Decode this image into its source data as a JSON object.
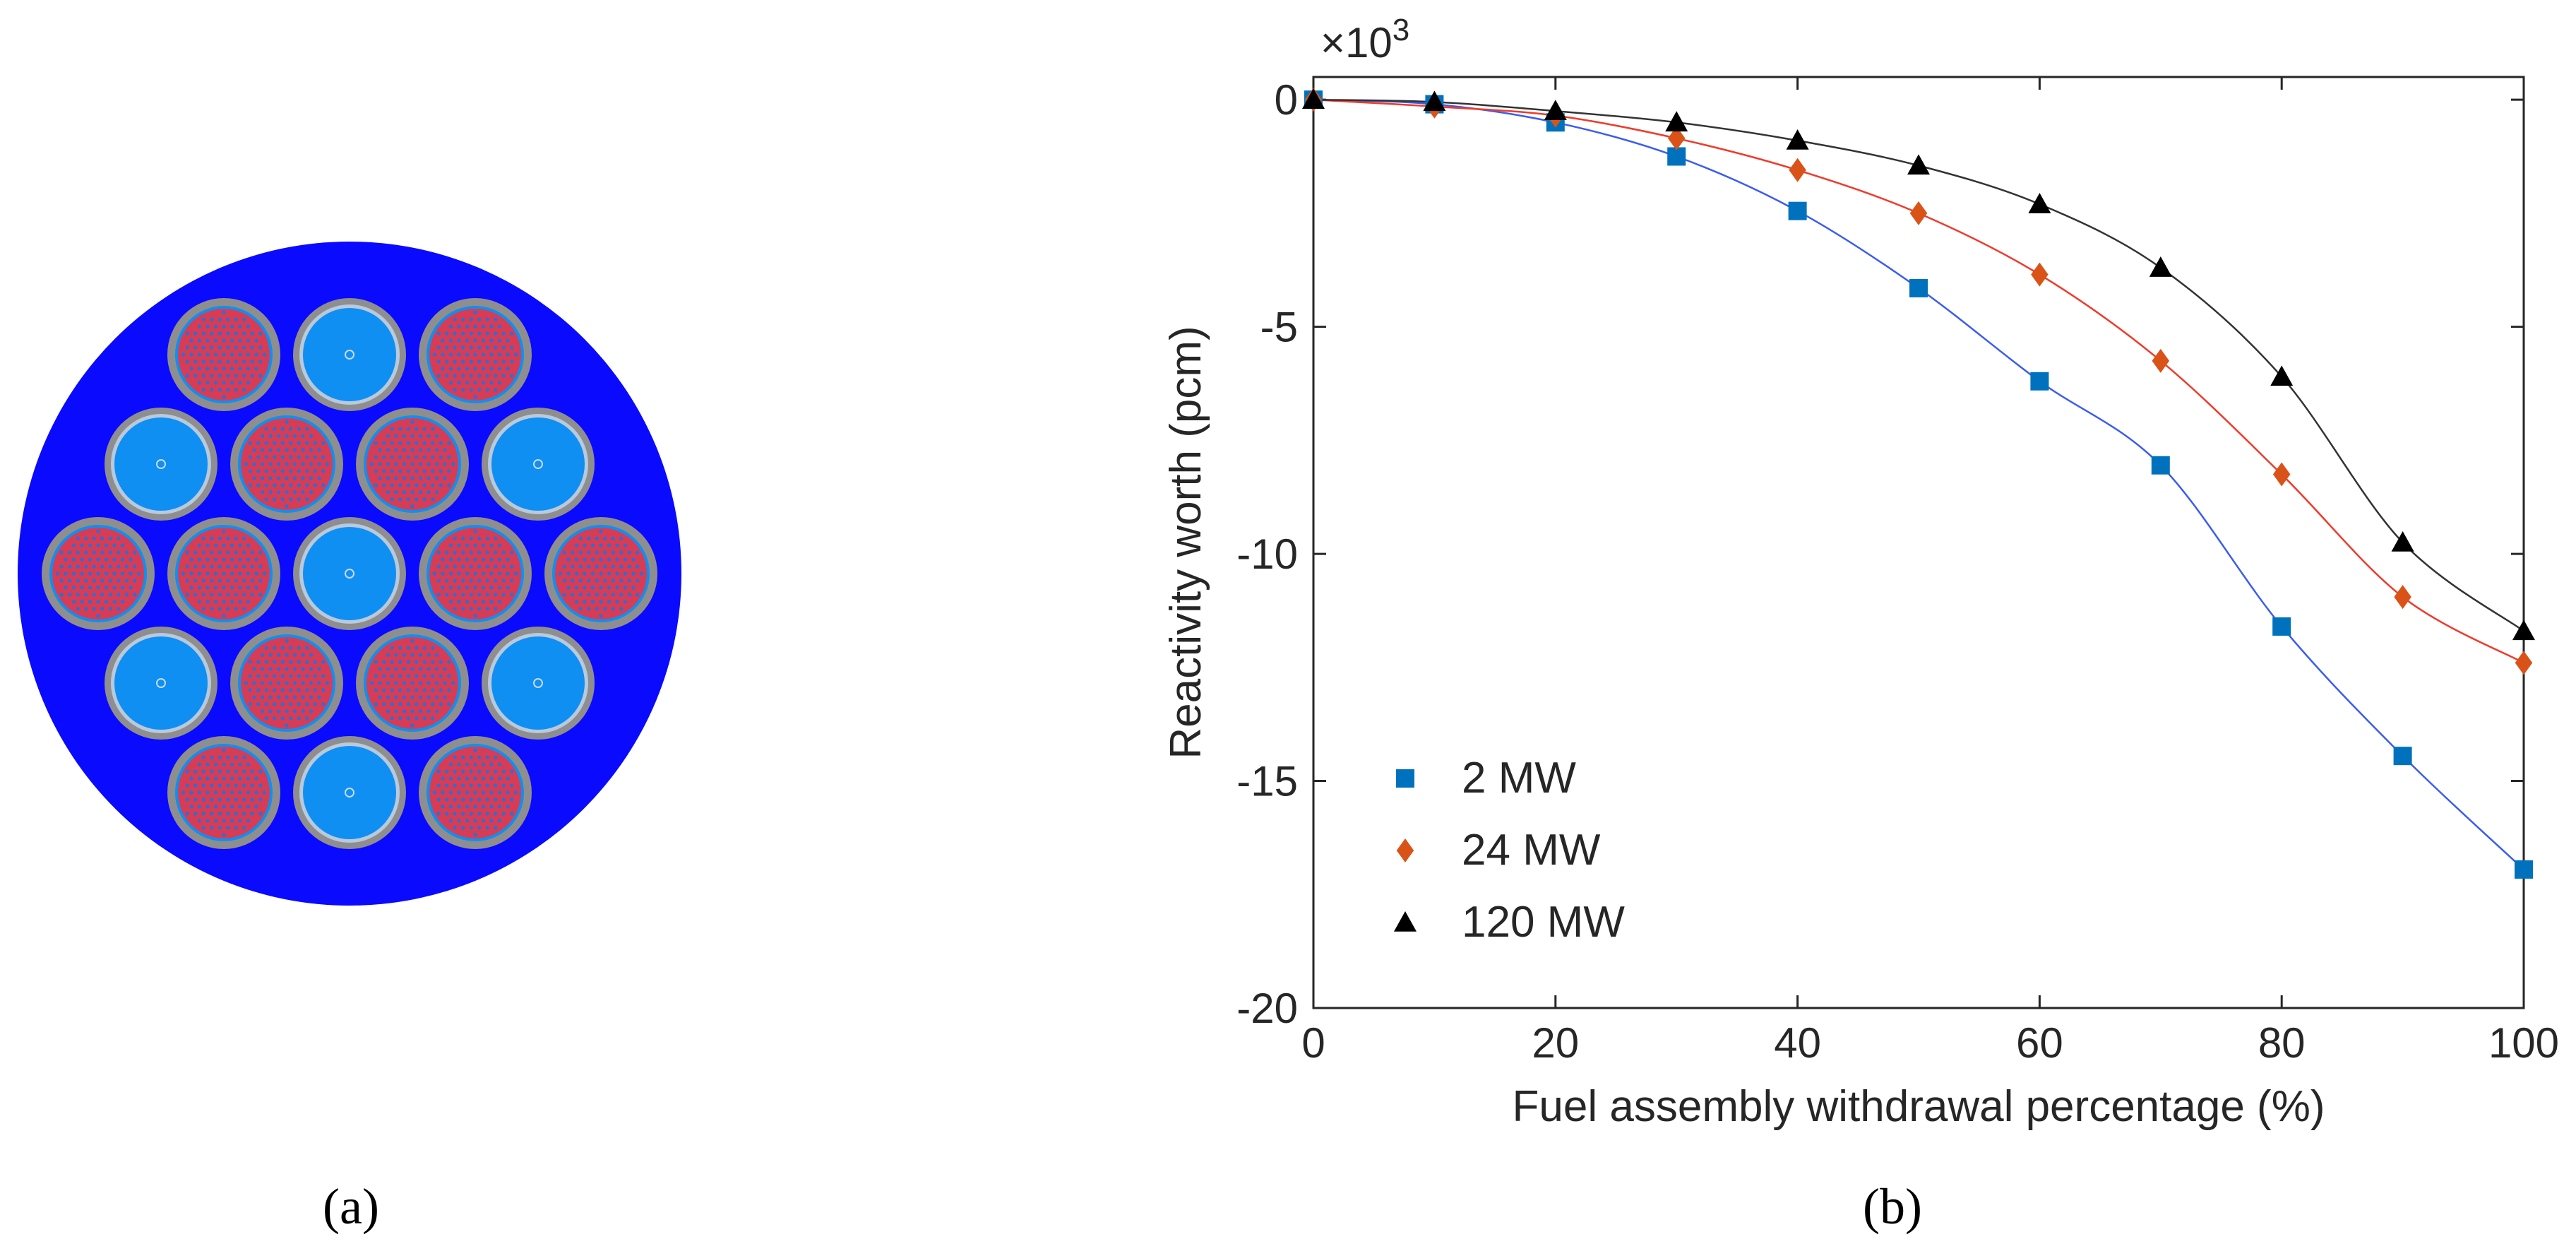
{
  "panels": {
    "a": {
      "label": "(a)"
    },
    "b": {
      "label": "(b)"
    }
  },
  "core": {
    "rows": [
      [
        "fuel",
        "water",
        "fuel"
      ],
      [
        "water",
        "fuel",
        "fuel",
        "water"
      ],
      [
        "fuel",
        "fuel",
        "water",
        "fuel",
        "fuel"
      ],
      [
        "water",
        "fuel",
        "fuel",
        "water"
      ],
      [
        "fuel",
        "water",
        "fuel"
      ]
    ],
    "colors": {
      "moderator": "#0a0aff",
      "channel_ring": "#8e8e8e",
      "fuel_disc": "#d63c55",
      "fuel_pin": "#2a6fd6",
      "water_channel": "#0f8ff2",
      "water_ring": "#b9c9de"
    }
  },
  "chart_data": {
    "type": "scatter",
    "title": "",
    "xlabel": "Fuel assembly withdrawal percentage (%)",
    "ylabel": "Reactivity worth (pcm)",
    "y_multiplier_label": "×10",
    "y_multiplier_exponent": "3",
    "xlim": [
      0,
      100
    ],
    "ylim": [
      -20,
      0.5
    ],
    "xticks": [
      0,
      20,
      40,
      60,
      80,
      100
    ],
    "yticks": [
      0,
      -5,
      -10,
      -15,
      -20
    ],
    "xtick_labels": [
      "0",
      "20",
      "40",
      "60",
      "80",
      "100"
    ],
    "ytick_labels": [
      "0",
      "-5",
      "-10",
      "-15",
      "-20"
    ],
    "legend_position": "bottom-left",
    "x": [
      0,
      10,
      20,
      30,
      40,
      50,
      60,
      70,
      80,
      90,
      100
    ],
    "series": [
      {
        "name": "2 MW",
        "marker": "square",
        "color": "#0072bd",
        "line_color": "#3a5cf0",
        "values": [
          0,
          -0.1,
          -0.5,
          -1.25,
          -2.45,
          -4.15,
          -6.2,
          -8.05,
          -11.6,
          -14.45,
          -16.95
        ]
      },
      {
        "name": "24 MW",
        "marker": "diamond",
        "color": "#d95319",
        "line_color": "#f03a2a",
        "values": [
          0,
          -0.15,
          -0.35,
          -0.85,
          -1.55,
          -2.5,
          -3.85,
          -5.75,
          -8.25,
          -10.95,
          -12.4
        ]
      },
      {
        "name": "120 MW",
        "marker": "triangle",
        "color": "#000000",
        "line_color": "#333333",
        "values": [
          0,
          -0.05,
          -0.25,
          -0.5,
          -0.9,
          -1.45,
          -2.3,
          -3.7,
          -6.1,
          -9.75,
          -11.7
        ]
      }
    ]
  }
}
